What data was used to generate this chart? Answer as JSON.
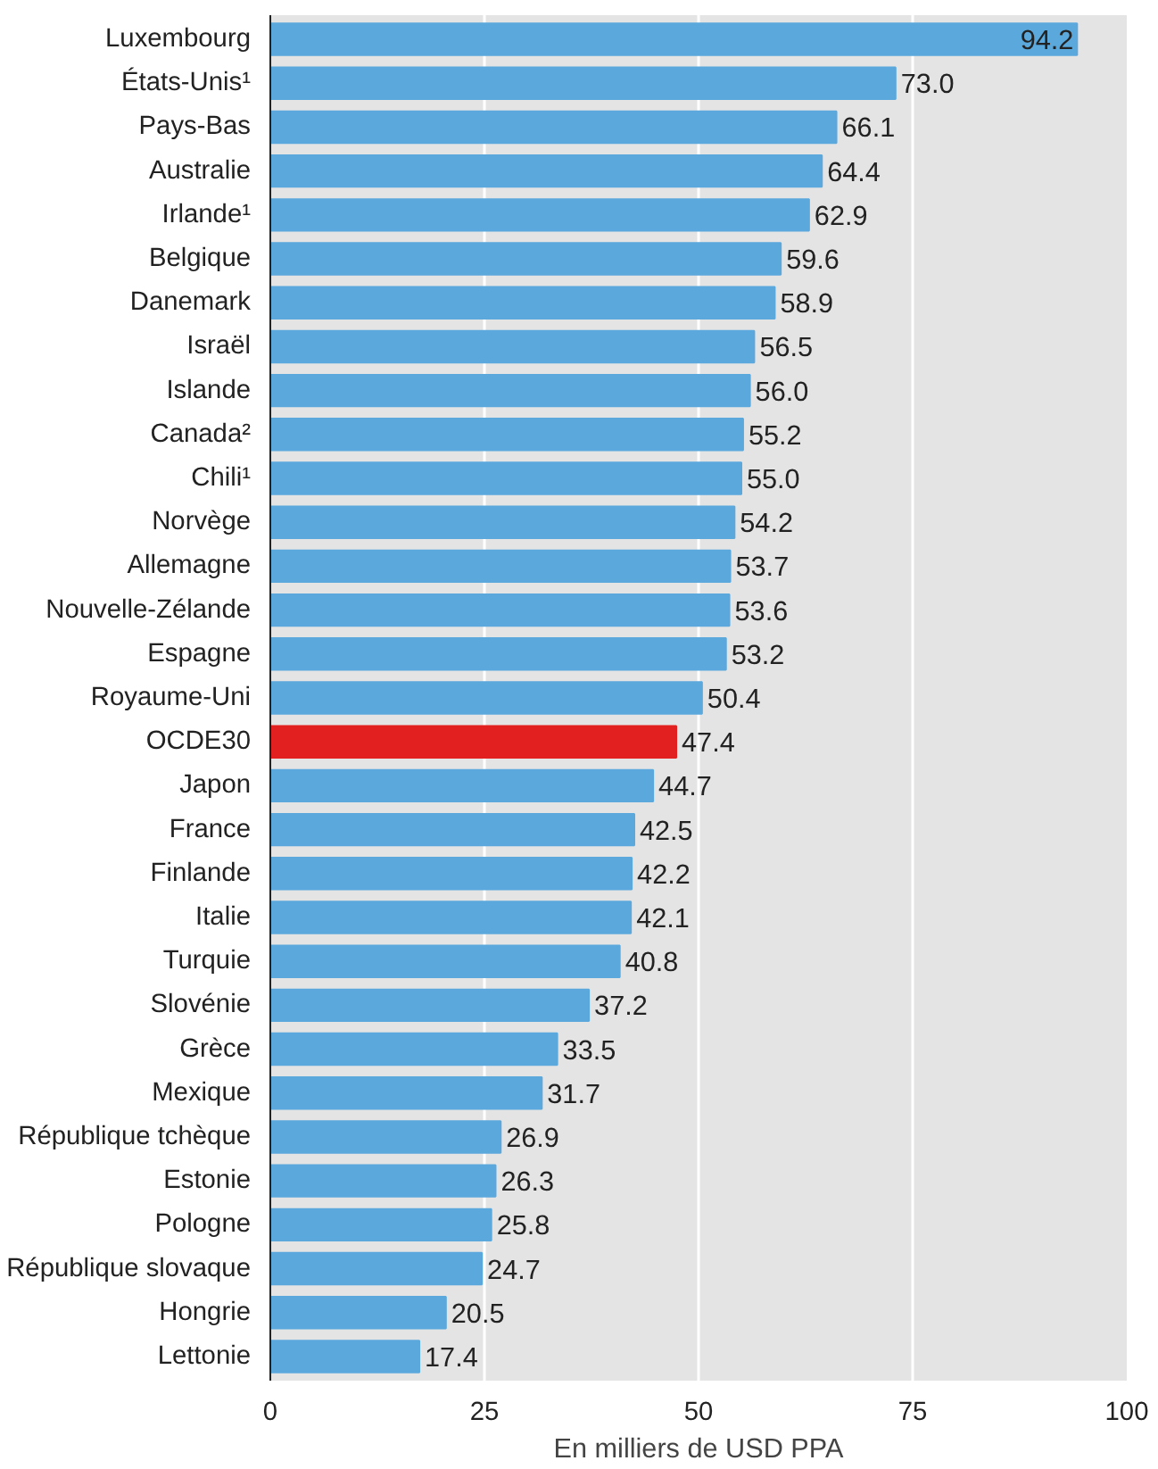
{
  "chart_data": {
    "type": "bar",
    "orientation": "horizontal",
    "xlabel": "En milliers de USD PPA",
    "categories": [
      "Luxembourg",
      "États-Unis¹",
      "Pays-Bas",
      "Australie",
      "Irlande¹",
      "Belgique",
      "Danemark",
      "Israël",
      "Islande",
      "Canada²",
      "Chili¹",
      "Norvège",
      "Allemagne",
      "Nouvelle-Zélande",
      "Espagne",
      "Royaume-Uni",
      "OCDE30",
      "Japon",
      "France",
      "Finlande",
      "Italie",
      "Turquie",
      "Slovénie",
      "Grèce",
      "Mexique",
      "République tchèque",
      "Estonie",
      "Pologne",
      "République slovaque",
      "Hongrie",
      "Lettonie"
    ],
    "values": [
      94.2,
      73.0,
      66.1,
      64.4,
      62.9,
      59.6,
      58.9,
      56.5,
      56.0,
      55.2,
      55.0,
      54.2,
      53.7,
      53.6,
      53.2,
      50.4,
      47.4,
      44.7,
      42.5,
      42.2,
      42.1,
      40.8,
      37.2,
      33.5,
      31.7,
      26.9,
      26.3,
      25.8,
      24.7,
      20.5,
      17.4
    ],
    "colors": [
      "#5ba8dd",
      "#5ba8dd",
      "#5ba8dd",
      "#5ba8dd",
      "#5ba8dd",
      "#5ba8dd",
      "#5ba8dd",
      "#5ba8dd",
      "#5ba8dd",
      "#5ba8dd",
      "#5ba8dd",
      "#5ba8dd",
      "#5ba8dd",
      "#5ba8dd",
      "#5ba8dd",
      "#5ba8dd",
      "#e2201f",
      "#5ba8dd",
      "#5ba8dd",
      "#5ba8dd",
      "#5ba8dd",
      "#5ba8dd",
      "#5ba8dd",
      "#5ba8dd",
      "#5ba8dd",
      "#5ba8dd",
      "#5ba8dd",
      "#5ba8dd",
      "#5ba8dd",
      "#5ba8dd",
      "#5ba8dd"
    ],
    "value_labels": [
      "94.2",
      "73.0",
      "66.1",
      "64.4",
      "62.9",
      "59.6",
      "58.9",
      "56.5",
      "56.0",
      "55.2",
      "55.0",
      "54.2",
      "53.7",
      "53.6",
      "53.2",
      "50.4",
      "47.4",
      "44.7",
      "42.5",
      "42.2",
      "42.1",
      "40.8",
      "37.2",
      "33.5",
      "31.7",
      "26.9",
      "26.3",
      "25.8",
      "24.7",
      "20.5",
      "17.4"
    ],
    "xlim": [
      0,
      100
    ],
    "xticks": [
      0,
      25,
      50,
      75,
      100
    ],
    "grid": "x"
  }
}
